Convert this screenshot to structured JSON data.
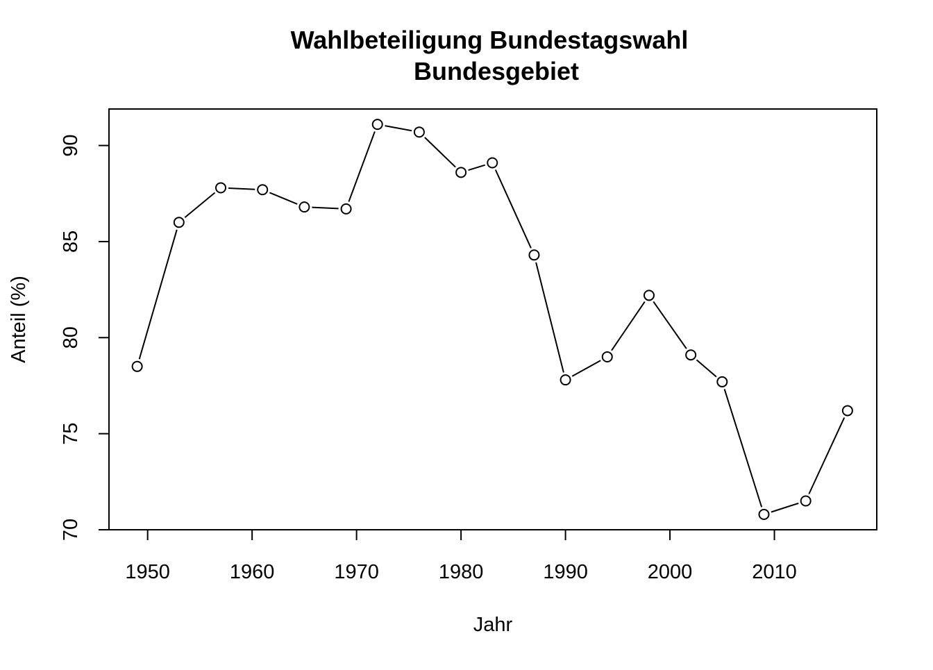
{
  "chart_data": {
    "type": "line",
    "title_lines": [
      "Wahlbeteiligung Bundestagswahl",
      "Bundesgebiet"
    ],
    "xlabel": "Jahr",
    "ylabel": "Anteil (%)",
    "xlim": [
      1946.3,
      2019.8
    ],
    "ylim": [
      70.0,
      91.9
    ],
    "xticks": [
      1950,
      1960,
      1970,
      1980,
      1990,
      2000,
      2010
    ],
    "yticks": [
      70,
      75,
      80,
      85,
      90
    ],
    "grid": false,
    "legend": "none",
    "marker": "open-circle",
    "colors": {
      "line": "#000000",
      "marker_fill": "#ffffff",
      "background": "#ffffff"
    },
    "series": [
      {
        "x": [
          1949,
          1953,
          1957,
          1961,
          1965,
          1969,
          1972,
          1976,
          1980,
          1983,
          1987,
          1990,
          1994,
          1998,
          2002,
          2005,
          2009,
          2013,
          2017
        ],
        "values": [
          78.5,
          86.0,
          87.8,
          87.7,
          86.8,
          86.7,
          91.1,
          90.7,
          88.6,
          89.1,
          84.3,
          77.8,
          79.0,
          82.2,
          79.1,
          77.7,
          70.8,
          71.5,
          76.2
        ]
      }
    ]
  }
}
